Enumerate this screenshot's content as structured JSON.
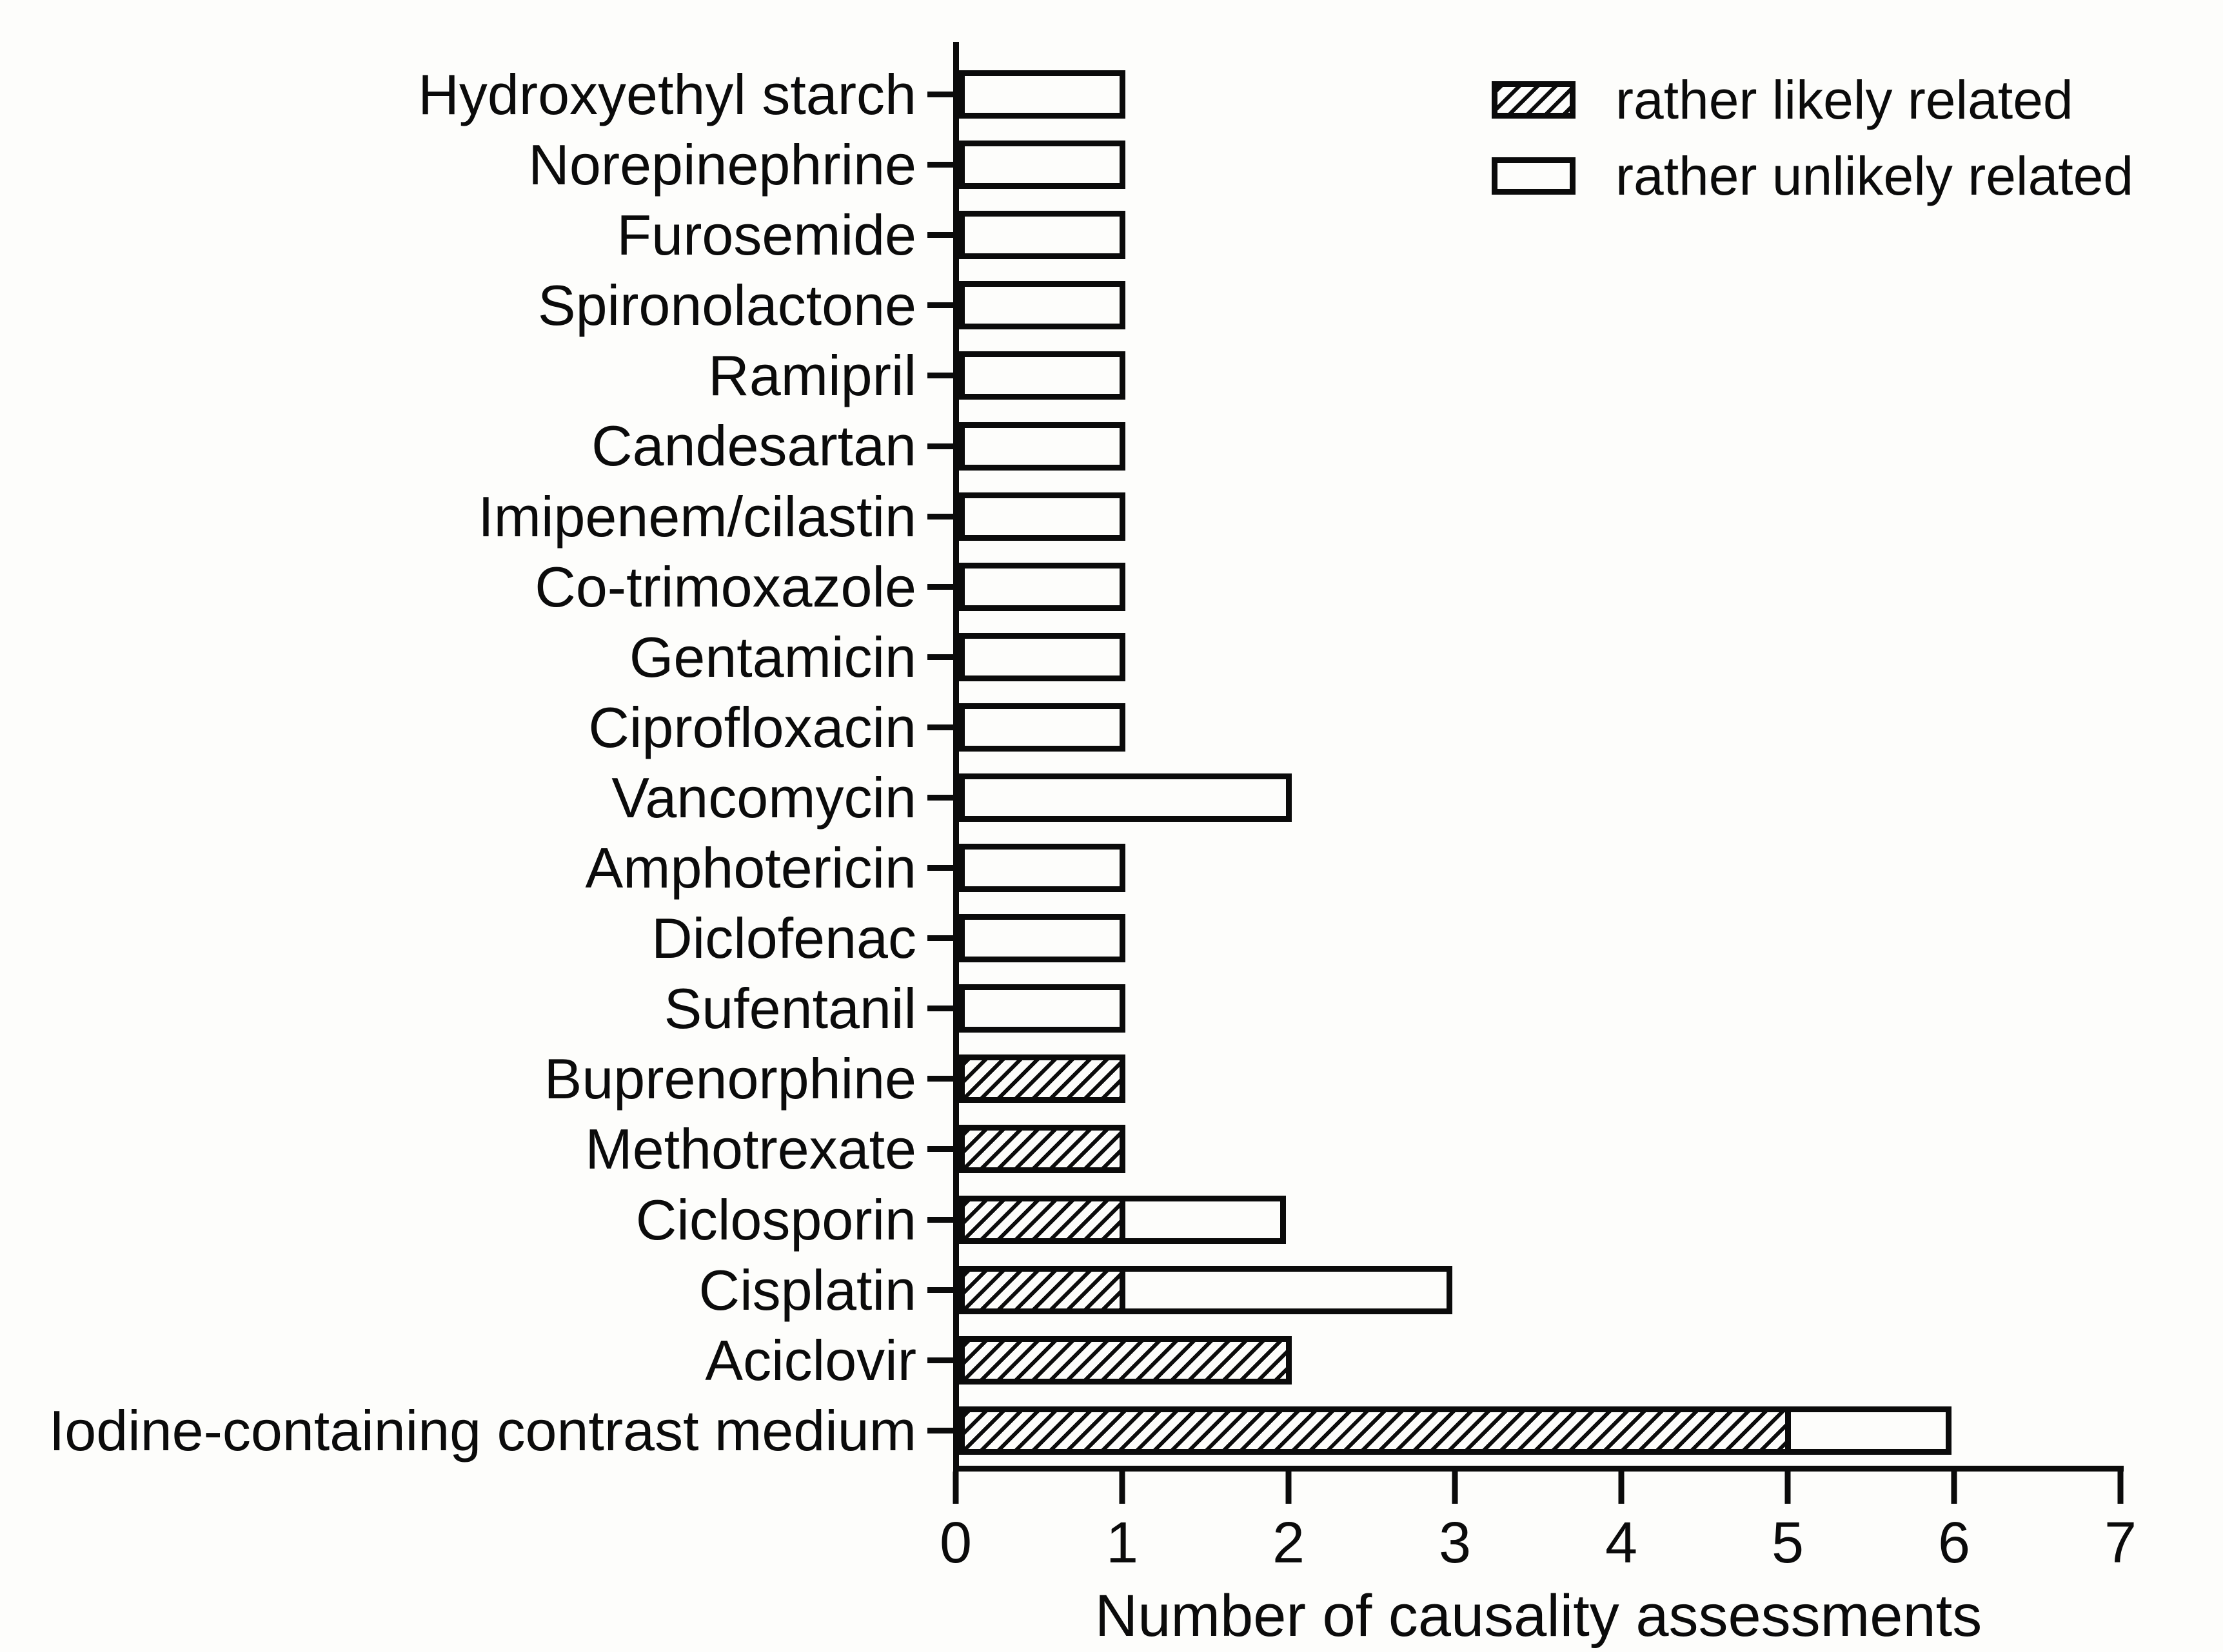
{
  "figure": {
    "background": "#fdfdfb",
    "ink": "#0b0b0b"
  },
  "legend": {
    "position": "top-right",
    "items": [
      {
        "label": "rather likely related",
        "swatch": "diagonal-hatch"
      },
      {
        "label": "rather unlikely related",
        "swatch": "plain-white"
      }
    ]
  },
  "x_axis": {
    "label": "Number of causality assessments",
    "tick_labels": [
      "0",
      "1",
      "2",
      "3",
      "4",
      "5",
      "6",
      "7"
    ]
  },
  "chart_data": {
    "type": "bar",
    "orientation": "horizontal",
    "stacked": true,
    "title": "",
    "xlabel": "Number of causality assessments",
    "ylabel": "",
    "xlim": [
      0,
      7
    ],
    "xticks": [
      0,
      1,
      2,
      3,
      4,
      5,
      6,
      7
    ],
    "grid": false,
    "legend_position": "top-right",
    "categories": [
      "Hydroxyethyl starch",
      "Norepinephrine",
      "Furosemide",
      "Spironolactone",
      "Ramipril",
      "Candesartan",
      "Imipenem/cilastin",
      "Co-trimoxazole",
      "Gentamicin",
      "Ciprofloxacin",
      "Vancomycin",
      "Amphotericin",
      "Diclofenac",
      "Sufentanil",
      "Buprenorphine",
      "Methotrexate",
      "Ciclosporin",
      "Cisplatin",
      "Aciclovir",
      "Iodine-containing contrast medium"
    ],
    "series": [
      {
        "name": "rather likely related",
        "style": "diagonal-hatch",
        "values": [
          0,
          0,
          0,
          0,
          0,
          0,
          0,
          0,
          0,
          0,
          0,
          0,
          0,
          0,
          1,
          1,
          1,
          1,
          2,
          5
        ]
      },
      {
        "name": "rather unlikely related",
        "style": "plain-white",
        "values": [
          1,
          1,
          1,
          1,
          1,
          1,
          1,
          1,
          1,
          1,
          2,
          1,
          1,
          1,
          0,
          0,
          1,
          2,
          0,
          1
        ]
      }
    ]
  }
}
